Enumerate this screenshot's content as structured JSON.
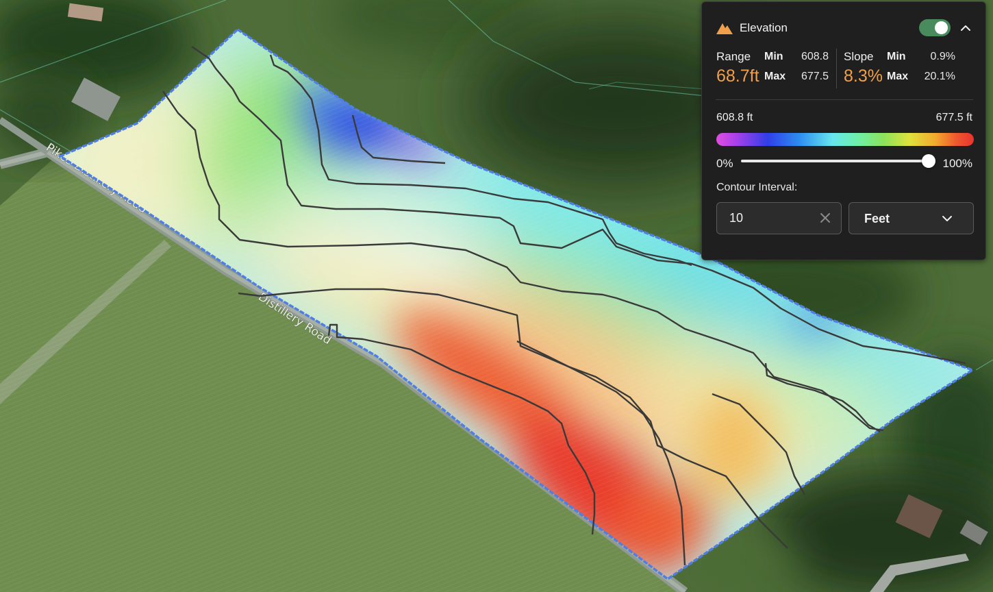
{
  "map": {
    "road_labels": [
      "Pikes Distillery Road",
      "Distillery Road"
    ]
  },
  "panel": {
    "title": "Elevation",
    "header_icon": "mountain-icon",
    "layer_toggle_on": true,
    "collapse_icon": "chevron-up-icon",
    "range": {
      "label": "Range",
      "value": "68.7ft",
      "min_label": "Min",
      "min": "608.8",
      "max_label": "Max",
      "max": "677.5"
    },
    "slope": {
      "label": "Slope",
      "value": "8.3%",
      "min_label": "Min",
      "min": "0.9%",
      "max_label": "Max",
      "max": "20.1%"
    },
    "legend": {
      "min_label": "608.8 ft",
      "max_label": "677.5 ft",
      "start_pct": "0%",
      "end_pct": "100%",
      "opacity_percent": 100
    },
    "contour": {
      "label": "Contour Interval:",
      "interval": "10",
      "clear_icon": "close-icon",
      "unit": "Feet",
      "unit_icon": "chevron-down-icon"
    },
    "colors": {
      "accent": "#f0a04b",
      "toggle": "#4a8b5e",
      "panel_bg": "#1f1f1f"
    }
  }
}
